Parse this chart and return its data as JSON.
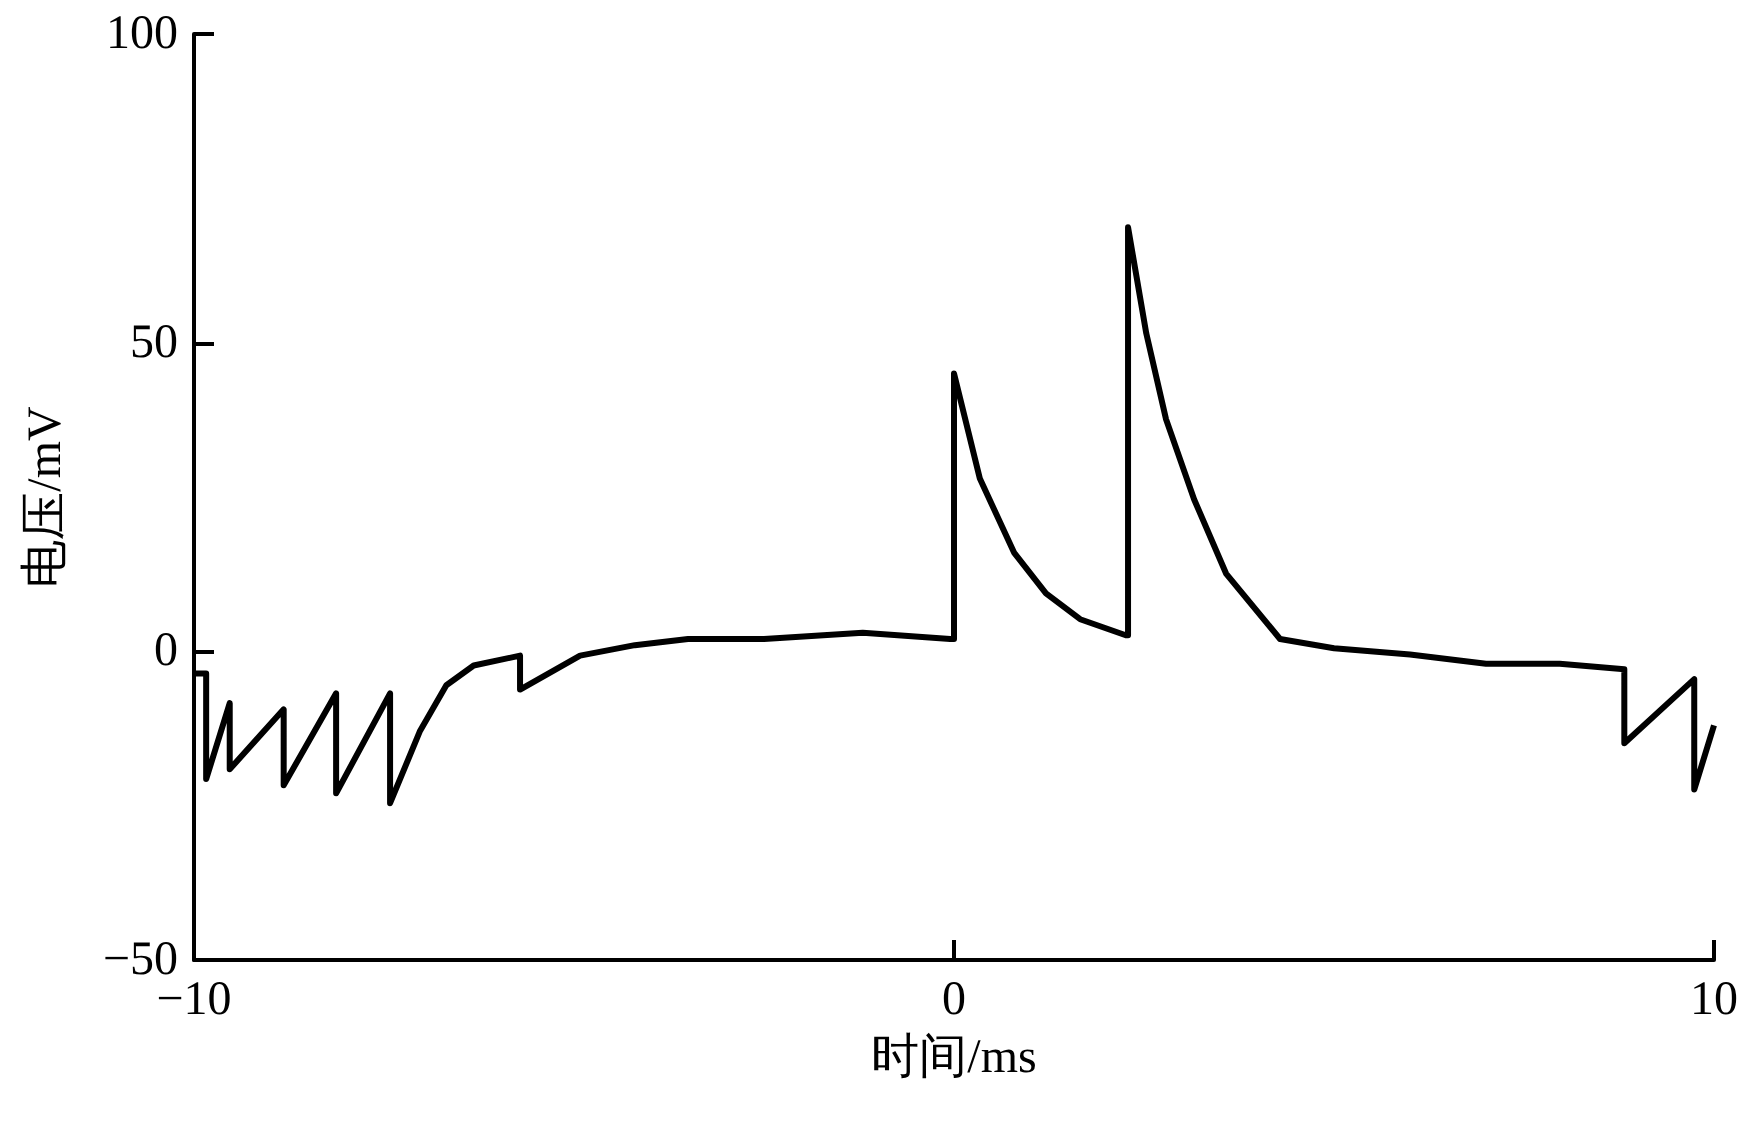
{
  "chart_data": {
    "type": "line",
    "xlabel": "时间/ms",
    "ylabel": "电压/mV",
    "xlim": [
      -10,
      10
    ],
    "xticks": [
      -10,
      0,
      10
    ],
    "ylim": [
      -50,
      100
    ],
    "yticks": [
      -50,
      0,
      50,
      100
    ],
    "grid": false,
    "marker": "none",
    "line_style": "solid",
    "series": [
      {
        "color": "#000000",
        "x": [
          -10,
          -9.84,
          -9.84,
          -9.53,
          -9.53,
          -8.82,
          -8.82,
          -8.13,
          -8.13,
          -7.42,
          -7.42,
          -7.03,
          -6.68,
          -6.32,
          -5.71,
          -5.71,
          -4.92,
          -4.2,
          -3.5,
          -2.5,
          -1.2,
          -0.05,
          0,
          0,
          0.34,
          0.79,
          1.21,
          1.66,
          2.26,
          2.29,
          2.29,
          2.53,
          2.79,
          3.16,
          3.58,
          4.29,
          5,
          6,
          7,
          7.97,
          8.82,
          8.82,
          9.74,
          9.74,
          10
        ],
        "values": [
          -3.6,
          -3.6,
          -20.7,
          -8.4,
          -19.1,
          -9.4,
          -21.7,
          -6.8,
          -23,
          -6.8,
          -24.6,
          -13,
          -5.5,
          -2.3,
          -0.7,
          -6.2,
          -0.7,
          1,
          2,
          2,
          3,
          2,
          2,
          45,
          28,
          16,
          9.4,
          5.2,
          2.6,
          2.6,
          68.7,
          51.5,
          37.6,
          24.6,
          12.6,
          2,
          0.5,
          -0.5,
          -2,
          -2,
          -2.9,
          -14.9,
          -4.5,
          -22.4,
          -12
        ]
      }
    ]
  }
}
